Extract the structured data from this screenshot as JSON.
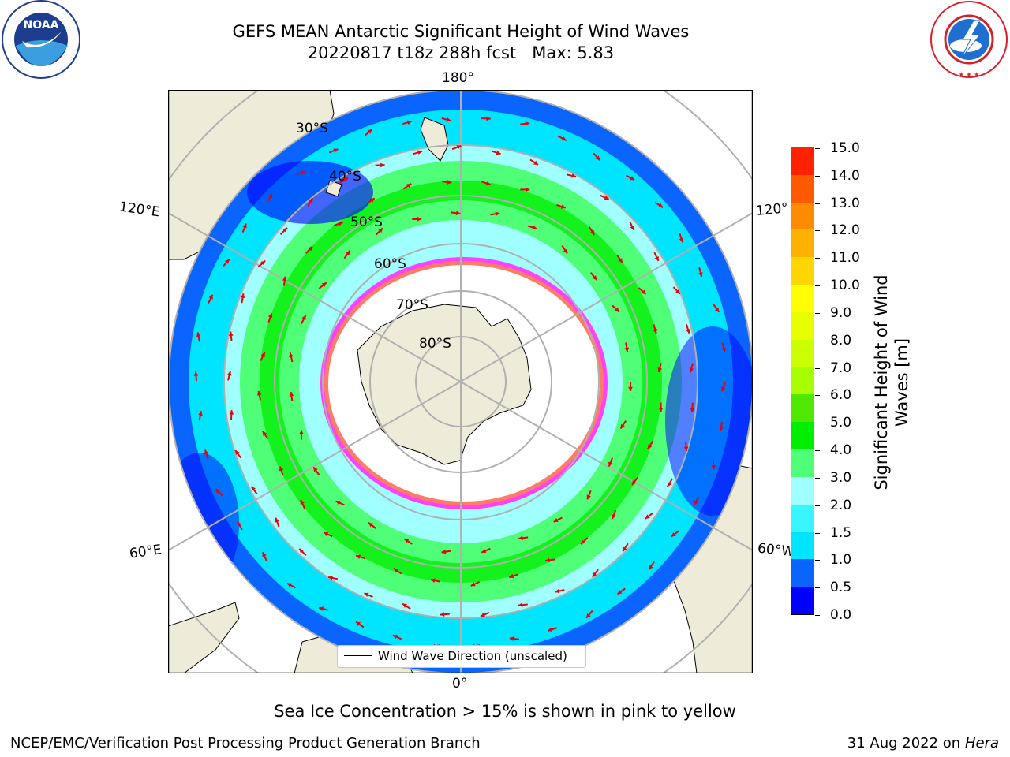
{
  "title": {
    "line1": "GEFS MEAN Antarctic Significant Height of Wind Waves",
    "line2": "20220817 t18z 288h fcst   Max: 5.83"
  },
  "logos": {
    "left": "noaa-logo",
    "left_text": "NOAA",
    "right": "national-weather-service-logo",
    "right_text": "NATIONAL WEATHER SERVICE"
  },
  "map": {
    "projection": "south-polar-stereographic",
    "longitude_labels": [
      "180°",
      "120°E",
      "120°",
      "60°E",
      "60°W",
      "0°"
    ],
    "latitude_labels": [
      "30°S",
      "40°S",
      "50°S",
      "60°S",
      "70°S",
      "80°S"
    ],
    "legend": "Wind Wave Direction (unscaled)",
    "arrow_color": "#e8000b",
    "land_color": "#efebd9",
    "ice_free_color": "#ffffff",
    "sea_ice_colors": [
      "#ff40ff",
      "#ffa500",
      "#ffff00"
    ]
  },
  "colorbar": {
    "label": "Significant Height of Wind Waves [m]",
    "ticks": [
      "0.0",
      "0.5",
      "1.0",
      "1.5",
      "2.0",
      "3.0",
      "4.0",
      "5.0",
      "6.0",
      "7.0",
      "8.0",
      "9.0",
      "10.0",
      "11.0",
      "12.0",
      "13.0",
      "14.0",
      "15.0"
    ],
    "colors": [
      "#0000ff",
      "#0a64ff",
      "#00e5ff",
      "#38f5ff",
      "#a0ffff",
      "#50ff78",
      "#00ee00",
      "#50e800",
      "#a8ff00",
      "#ccff00",
      "#e8ff00",
      "#ffff00",
      "#ffd600",
      "#ffb000",
      "#ff8c00",
      "#ff5a00",
      "#ff2200",
      "#ff0000"
    ]
  },
  "notes": {
    "sea_ice": "Sea Ice Concentration > 15% is shown in pink to yellow",
    "credit": "NCEP/EMC/Verification Post Processing Product Generation Branch",
    "run_date": "31 Aug 2022 on",
    "machine": "Hera"
  }
}
